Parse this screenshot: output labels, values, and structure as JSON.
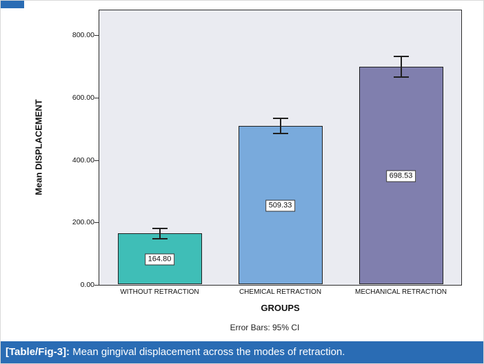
{
  "figure": {
    "caption_tag": "[Table/Fig-3]:",
    "caption_text": " Mean gingival displacement across the modes of retraction.",
    "caption_bg": "#2a6cb4",
    "accent_color": "#2a6cb4"
  },
  "chart_data": {
    "type": "bar",
    "title": "",
    "xlabel": "GROUPS",
    "ylabel": "Mean DISPLACEMENT",
    "footnote": "Error Bars: 95% CI",
    "categories": [
      "WITHOUT RETRACTION",
      "CHEMICAL RETRACTION",
      "MECHANICAL RETRACTION"
    ],
    "values": [
      164.8,
      509.33,
      698.53
    ],
    "value_labels": [
      "164.80",
      "509.33",
      "698.53"
    ],
    "ci_half": [
      17,
      25,
      33
    ],
    "bar_colors": [
      "#3fbeb7",
      "#79aadc",
      "#807fae"
    ],
    "ylim": [
      0,
      880
    ],
    "yticks": [
      0,
      200,
      400,
      600,
      800
    ],
    "ytick_labels": [
      "0.00",
      "200.00",
      "400.00",
      "600.00",
      "800.00"
    ],
    "grid": false,
    "legend": "none",
    "plot_bg": "#eaebf1"
  }
}
